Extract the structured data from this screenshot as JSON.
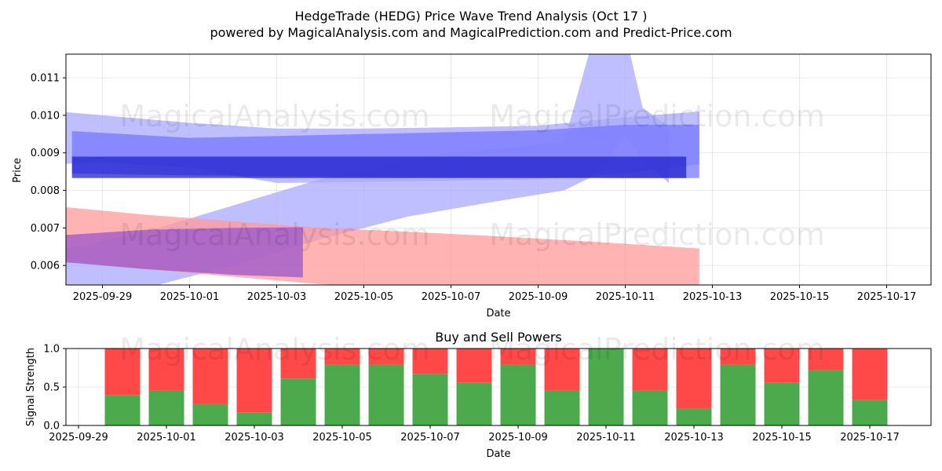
{
  "header": {
    "title": "HedgeTrade (HEDG) Price Wave Trend Analysis (Oct 17 )",
    "subtitle": "powered by MagicalAnalysis.com and MagicalPrediction.com and Predict-Price.com"
  },
  "watermarks": {
    "left": "MagicalAnalysis.com",
    "right": "MagicalPrediction.com"
  },
  "chart_data": [
    {
      "type": "area",
      "title": "",
      "xlabel": "Date",
      "ylabel": "Price",
      "xlim": [
        "2025-09-27.6",
        "2025-10-18.3"
      ],
      "ylim": [
        0.00548,
        0.01163
      ],
      "grid": true,
      "x_ticks": [
        "2025-09-29",
        "2025-10-01",
        "2025-10-03",
        "2025-10-05",
        "2025-10-07",
        "2025-10-09",
        "2025-10-11",
        "2025-10-13",
        "2025-10-15",
        "2025-10-17"
      ],
      "y_ticks": [
        "0.006",
        "0.007",
        "0.008",
        "0.009",
        "0.010",
        "0.011"
      ],
      "y_tick_values": [
        0.006,
        0.007,
        0.008,
        0.009,
        0.01,
        0.011
      ],
      "series": [
        {
          "name": "wave-upper-blue",
          "color": "#aaaaff",
          "x": [
            -1.0,
            0.0,
            2.0,
            4.0,
            6.0,
            8.0,
            10.0,
            12.0,
            13.7
          ],
          "upper": [
            0.0101,
            0.01,
            0.0098,
            0.00965,
            0.00965,
            0.00968,
            0.00972,
            0.00995,
            0.0101
          ],
          "lower": [
            0.0087,
            0.00875,
            0.0086,
            0.0082,
            0.00822,
            0.00825,
            0.0083,
            0.00845,
            0.0087
          ]
        },
        {
          "name": "wave-rising-blue",
          "color": "#aaaaff",
          "x": [
            -1.0,
            1.0,
            3.0,
            5.0,
            7.0,
            9.0,
            10.6,
            11.3,
            12.0,
            12.4,
            13.0
          ],
          "upper": [
            0.0064,
            0.0069,
            0.0076,
            0.0083,
            0.0088,
            0.0091,
            0.0093,
            0.0122,
            0.0122,
            0.0102,
            0.0097
          ],
          "lower": [
            0.005,
            0.0054,
            0.006,
            0.0067,
            0.0073,
            0.0077,
            0.008,
            0.0084,
            0.0095,
            0.0088,
            0.0082
          ]
        },
        {
          "name": "wave-mid-blue",
          "color": "#7777ff",
          "x": [
            -0.7,
            2.0,
            4.0,
            6.0,
            8.0,
            10.0,
            12.0,
            13.7
          ],
          "upper": [
            0.00958,
            0.0094,
            0.00945,
            0.0095,
            0.00955,
            0.0096,
            0.00975,
            0.00975
          ],
          "lower": [
            0.00845,
            0.0084,
            0.00838,
            0.00835,
            0.00835,
            0.00835,
            0.00833,
            0.00833
          ]
        },
        {
          "name": "wave-dark-band",
          "color": "#2222cc",
          "x": [
            -0.7,
            13.4
          ],
          "upper": [
            0.0089,
            0.0089
          ],
          "lower": [
            0.00833,
            0.00833
          ]
        },
        {
          "name": "wave-red",
          "color": "#ff9999",
          "x": [
            -1.0,
            1.0,
            3.0,
            5.0,
            7.0,
            9.0,
            11.0,
            13.7
          ],
          "upper": [
            0.00757,
            0.00735,
            0.00718,
            0.007,
            0.0069,
            0.00678,
            0.00665,
            0.00645
          ],
          "lower": [
            0.00615,
            0.0059,
            0.0057,
            0.0055,
            0.0054,
            0.0053,
            0.0052,
            0.0051
          ]
        },
        {
          "name": "wave-purple",
          "color": "#9955cc",
          "x": [
            -1.0,
            1.0,
            3.0,
            4.6
          ],
          "upper": [
            0.0068,
            0.00695,
            0.007,
            0.00702
          ],
          "lower": [
            0.0061,
            0.0059,
            0.00575,
            0.00568
          ]
        }
      ]
    },
    {
      "type": "bar",
      "stacked": true,
      "title": "Buy and Sell Powers",
      "xlabel": "Date",
      "ylabel": "Signal Strength",
      "ylim": [
        0.0,
        1.0
      ],
      "grid": true,
      "x_ticks": [
        "2025-09-29",
        "2025-10-01",
        "2025-10-03",
        "2025-10-05",
        "2025-10-07",
        "2025-10-09",
        "2025-10-11",
        "2025-10-13",
        "2025-10-15",
        "2025-10-17"
      ],
      "y_ticks": [
        "0.0",
        "0.5",
        "1.0"
      ],
      "y_tick_values": [
        0.0,
        0.5,
        1.0
      ],
      "categories": [
        "2025-09-30",
        "2025-10-01",
        "2025-10-02",
        "2025-10-03",
        "2025-10-04",
        "2025-10-05",
        "2025-10-06",
        "2025-10-07",
        "2025-10-08",
        "2025-10-09",
        "2025-10-10",
        "2025-10-11",
        "2025-10-12",
        "2025-10-13",
        "2025-10-14",
        "2025-10-15",
        "2025-10-16",
        "2025-10-17"
      ],
      "series": [
        {
          "name": "Buy",
          "color": "#4caa4c",
          "values": [
            0.39,
            0.45,
            0.28,
            0.17,
            0.61,
            0.79,
            0.79,
            0.67,
            0.56,
            0.79,
            0.45,
            1.0,
            0.45,
            0.22,
            0.79,
            0.56,
            0.72,
            0.33
          ]
        },
        {
          "name": "Sell",
          "color": "#ff4848",
          "values": [
            0.61,
            0.55,
            0.72,
            0.83,
            0.39,
            0.21,
            0.21,
            0.33,
            0.44,
            0.21,
            0.55,
            0.0,
            0.55,
            0.78,
            0.21,
            0.44,
            0.28,
            0.67
          ]
        }
      ]
    }
  ]
}
